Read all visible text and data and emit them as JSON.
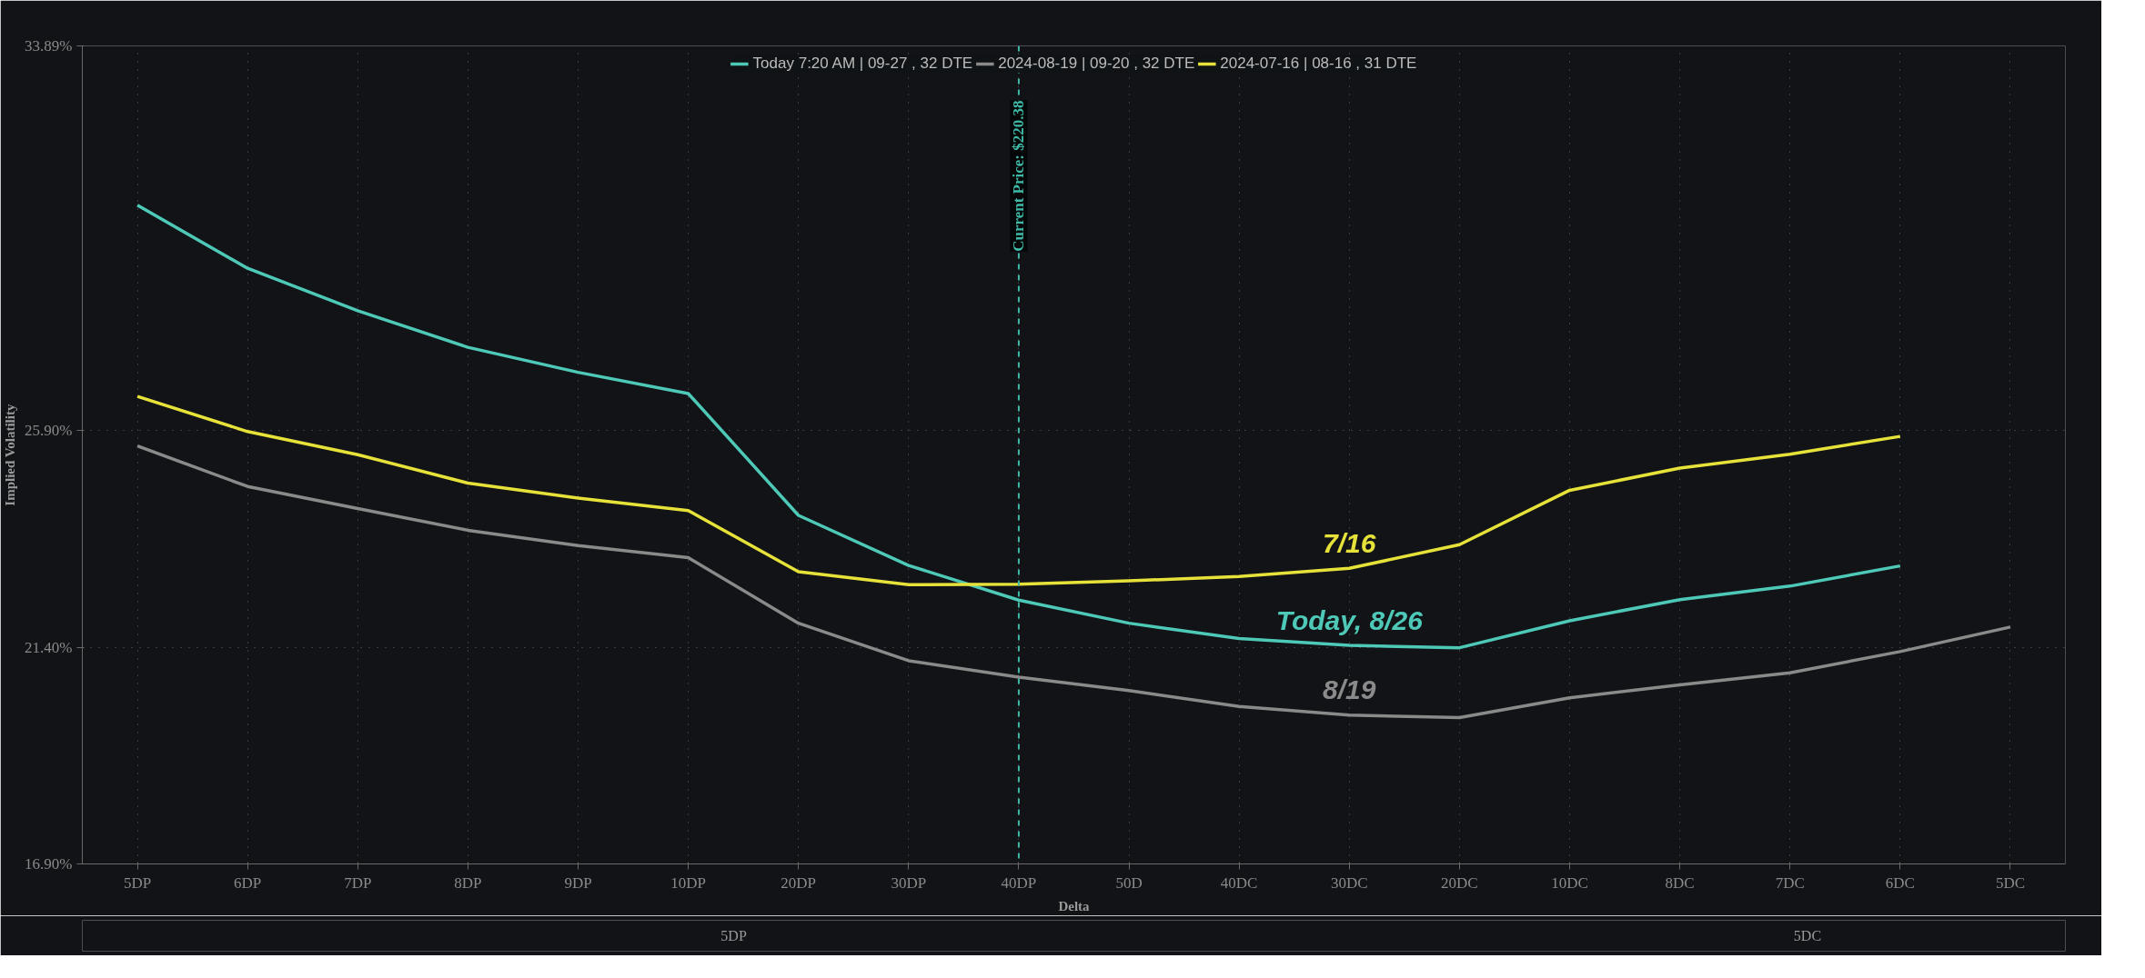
{
  "chart_data": {
    "type": "line",
    "xlabel": "Delta",
    "ylabel": "Implied Volatility",
    "categories": [
      "5DP",
      "6DP",
      "7DP",
      "8DP",
      "9DP",
      "10DP",
      "20DP",
      "30DP",
      "40DP",
      "50D",
      "40DC",
      "30DC",
      "20DC",
      "10DC",
      "8DC",
      "7DC",
      "6DC",
      "5DC"
    ],
    "ylim": [
      16.9,
      33.89
    ],
    "yticks": [
      {
        "value": 16.9,
        "label": "16.90%"
      },
      {
        "value": 21.4,
        "label": "21.40%"
      },
      {
        "value": 25.9,
        "label": "25.90%"
      },
      {
        "value": 33.89,
        "label": "33.89%"
      }
    ],
    "grid": true,
    "legend": "top",
    "series": [
      {
        "name": "Today 7:20 AM | 09-27 , 32 DTE",
        "color": "#4ec9b8",
        "values": [
          30.58,
          29.27,
          28.39,
          27.63,
          27.11,
          26.67,
          24.14,
          23.1,
          22.38,
          21.9,
          21.58,
          21.44,
          21.39,
          21.95,
          22.39,
          22.67,
          23.09,
          null
        ]
      },
      {
        "name": "2024-08-19 | 09-20 , 32 DTE",
        "color": "#8a8a8a",
        "values": [
          25.58,
          24.74,
          24.28,
          23.83,
          23.51,
          23.26,
          21.9,
          21.12,
          20.78,
          20.5,
          20.17,
          19.99,
          19.94,
          20.35,
          20.62,
          20.87,
          21.31,
          21.82
        ]
      },
      {
        "name": "2024-07-16 | 08-16 , 31 DTE",
        "color": "#e6e23a",
        "values": [
          26.61,
          25.88,
          25.4,
          24.81,
          24.5,
          24.24,
          22.97,
          22.7,
          22.71,
          22.78,
          22.87,
          23.04,
          23.53,
          24.66,
          25.12,
          25.41,
          25.78,
          null
        ]
      }
    ],
    "ref_lines": [
      {
        "axis": "x",
        "value": "40DP",
        "label": "Current Price: $220.38",
        "color": "#3fb8a8",
        "line_style": "dashed"
      }
    ],
    "annotations": [
      "Today, 8/26",
      "8/19",
      "7/16",
      "5DP",
      "5DC"
    ]
  }
}
